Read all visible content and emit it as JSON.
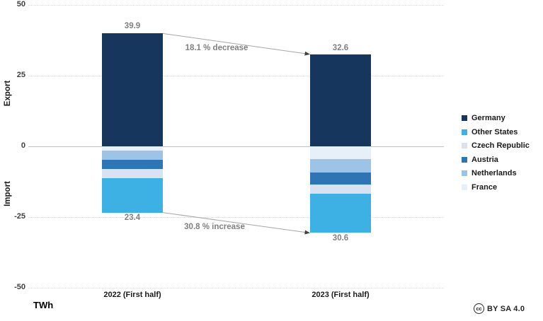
{
  "chart_data": {
    "type": "bar",
    "variant": "diverging-stacked-columns",
    "units": "TWh",
    "categories": [
      "2022 (First half)",
      "2023 (First half)"
    ],
    "export_series": [
      {
        "name": "Germany",
        "values": [
          39.9,
          32.6
        ]
      }
    ],
    "import_series": [
      {
        "name": "France",
        "values": [
          1.4,
          4.5
        ]
      },
      {
        "name": "Netherlands",
        "values": [
          3.4,
          4.7
        ]
      },
      {
        "name": "Austria",
        "values": [
          3.3,
          4.2
        ]
      },
      {
        "name": "Czech Republic",
        "values": [
          3.2,
          3.4
        ]
      },
      {
        "name": "Other States",
        "values": [
          12.1,
          13.8
        ]
      }
    ],
    "totals": {
      "export_labels": [
        "39.9",
        "32.6"
      ],
      "import_labels": [
        "23.4",
        "30.6"
      ]
    },
    "annotations": [
      {
        "text": "18.1 % decrease",
        "side": "export"
      },
      {
        "text": "30.8 % increase",
        "side": "import"
      }
    ],
    "ylim": [
      -50,
      50
    ],
    "y_ticks": [
      "50",
      "25",
      "0",
      "-25",
      "-50"
    ],
    "grid": "horizontal dotted gridlines, solid zero line",
    "legend_position": "right"
  },
  "colors": {
    "Germany": "#17365D",
    "Other States": "#3EB1E4",
    "Czech Republic": "#D9E2F3",
    "Austria": "#2E75B6",
    "Netherlands": "#9DC3E6",
    "France": "#E7EFF9"
  },
  "axis": {
    "y_title_top": "Export",
    "y_title_bottom": "Import",
    "unit_label": "TWh"
  },
  "legend": {
    "items": [
      {
        "label": "Germany",
        "color": "#17365D"
      },
      {
        "label": "Other States",
        "color": "#3EB1E4"
      },
      {
        "label": "Czech Republic",
        "color": "#D9E2F3"
      },
      {
        "label": "Austria",
        "color": "#2E75B6"
      },
      {
        "label": "Netherlands",
        "color": "#9DC3E6"
      },
      {
        "label": "France",
        "color": "#E7EFF9"
      }
    ]
  },
  "footer": {
    "license_icon": "cc",
    "license_text": "BY SA 4.0"
  }
}
